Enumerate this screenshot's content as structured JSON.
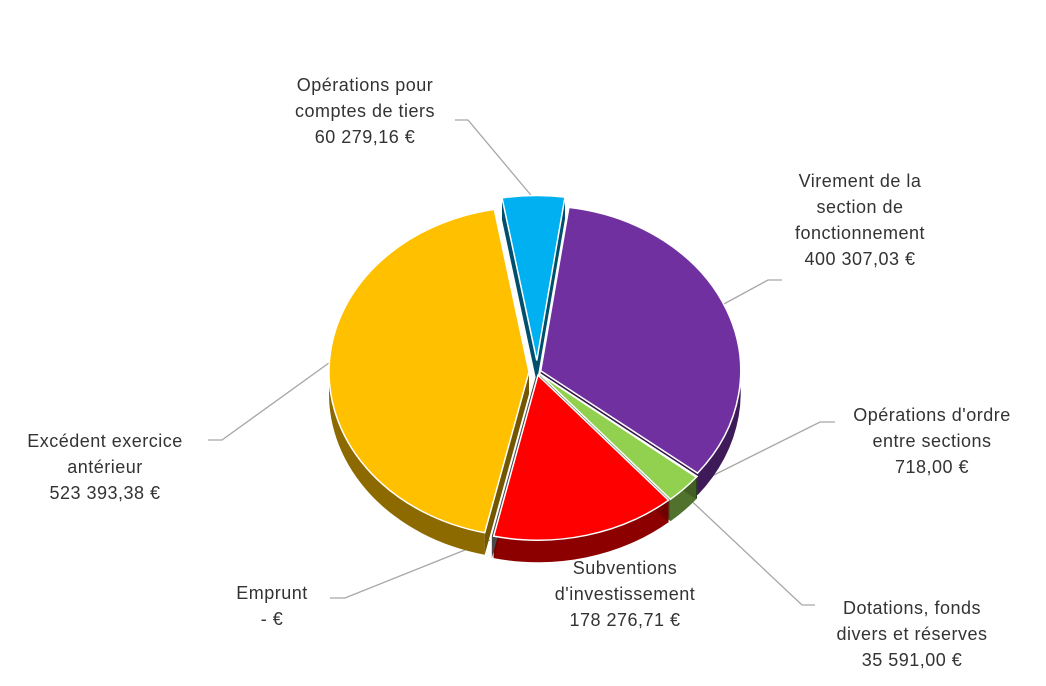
{
  "chart_data": {
    "type": "pie",
    "categories": [
      "Opérations pour comptes de tiers",
      "Virement de la section de fonctionnement",
      "Opérations d'ordre entre sections",
      "Dotations, fonds divers et réserves",
      "Subventions d'investissement",
      "Emprunt",
      "Excédent exercice antérieur"
    ],
    "values": [
      60279.16,
      400307.03,
      718.0,
      35591.0,
      178276.71,
      0,
      523393.38
    ],
    "value_labels": [
      "60 279,16 €",
      "400 307,03 €",
      "718,00 €",
      "35 591,00 €",
      "178 276,71 €",
      "- €",
      "523 393,38 €"
    ],
    "colors": [
      "#00b0f0",
      "#7030a0",
      "#375623",
      "#92d050",
      "#ff0000",
      "#a5a5a5",
      "#ffc000"
    ]
  }
}
